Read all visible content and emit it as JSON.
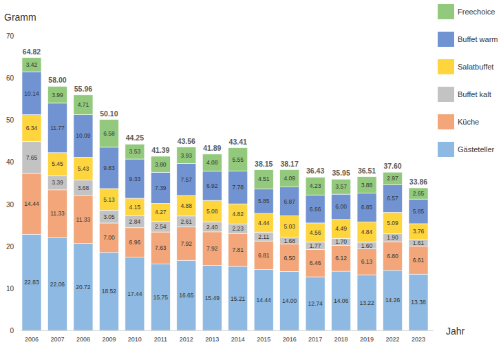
{
  "chart_data": {
    "type": "bar",
    "stacked": true,
    "data_labels": true,
    "grid": false,
    "legend": "right",
    "y_label": "Gramm",
    "x_label": "Jahr",
    "categories": [
      "2006",
      "2007",
      "2008",
      "2009",
      "2010",
      "2011",
      "2012",
      "2013",
      "2014",
      "2015",
      "2016",
      "2017",
      "2018",
      "2019",
      "2022",
      "2023"
    ],
    "ylim": [
      0,
      70
    ],
    "yticks": [
      0,
      10,
      20,
      30,
      40,
      50,
      60,
      70
    ],
    "totals": [
      64.82,
      58.0,
      55.96,
      50.1,
      44.25,
      41.39,
      43.56,
      41.89,
      43.41,
      38.15,
      38.17,
      36.43,
      35.95,
      36.51,
      37.6,
      33.86
    ],
    "total_labels": [
      "64.82",
      "58.00",
      "55.96",
      "50.10",
      "44.25",
      "41.39",
      "43.56",
      "41.89",
      "43.41",
      "38.15",
      "38.17",
      "36.43",
      "35.95",
      "36.51",
      "37.60",
      "33.86"
    ],
    "series": [
      {
        "name": "Gästeteller",
        "color": "#8db9e2",
        "values": [
          22.83,
          22.06,
          20.72,
          18.52,
          17.44,
          15.75,
          16.65,
          15.49,
          15.21,
          14.44,
          14.0,
          12.74,
          14.06,
          13.22,
          14.26,
          13.38
        ],
        "value_labels": [
          "22.83",
          "22.06",
          "20.72",
          "18.52",
          "17.44",
          "15.75",
          "16.65",
          "15.49",
          "15.21",
          "14.44",
          "14.00",
          "12.74",
          "14.06",
          "13.22",
          "14.26",
          "13.38"
        ]
      },
      {
        "name": "Küche",
        "color": "#f2a679",
        "values": [
          14.44,
          11.33,
          11.33,
          7.0,
          6.96,
          7.63,
          7.92,
          7.92,
          7.81,
          6.81,
          6.5,
          6.46,
          6.12,
          6.13,
          6.8,
          6.61
        ],
        "value_labels": [
          "14.44",
          "11.33",
          "11.33",
          "7.00",
          "6.96",
          "7.63",
          "7.92",
          "7.92",
          "7.81",
          "6.81",
          "6.50",
          "6.46",
          "6.12",
          "6.13",
          "6.80",
          "6.61"
        ]
      },
      {
        "name": "Buffet kalt",
        "color": "#c3c3c3",
        "values": [
          7.65,
          3.39,
          3.68,
          3.05,
          2.84,
          2.54,
          2.61,
          2.4,
          2.23,
          2.11,
          1.68,
          1.77,
          1.7,
          1.6,
          1.9,
          1.61
        ],
        "value_labels": [
          "7.65",
          "3.39",
          "3.68",
          "3.05",
          "2.84",
          "2.54",
          "2.61",
          "2.40",
          "2.23",
          "2.11",
          "1.68",
          "1.77",
          "1.70",
          "1.60",
          "1.90",
          "1.61"
        ]
      },
      {
        "name": "Salatbuffet",
        "color": "#ffd53e",
        "values": [
          6.34,
          5.45,
          5.43,
          5.13,
          4.15,
          4.27,
          4.88,
          5.08,
          4.82,
          4.44,
          5.03,
          4.56,
          4.49,
          4.84,
          5.09,
          3.76
        ],
        "value_labels": [
          "6.34",
          "5.45",
          "5.43",
          "5.13",
          "4.15",
          "4.27",
          "4.88",
          "5.08",
          "4.82",
          "4.44",
          "5.03",
          "4.56",
          "4.49",
          "4.84",
          "5.09",
          "3.76"
        ]
      },
      {
        "name": "Buffet warm",
        "color": "#7293d2",
        "values": [
          10.14,
          11.77,
          10.09,
          9.83,
          9.33,
          7.39,
          7.57,
          6.92,
          7.78,
          5.85,
          6.87,
          6.66,
          6.0,
          6.85,
          6.57,
          5.85
        ],
        "value_labels": [
          "10.14",
          "11.77",
          "10.09",
          "9.83",
          "9.33",
          "7.39",
          "7.57",
          "6.92",
          "7.78",
          "5.85",
          "6.87",
          "6.66",
          "6.00",
          "6.85",
          "6.57",
          "5.85"
        ]
      },
      {
        "name": "Freechoice",
        "color": "#93c97c",
        "values": [
          3.42,
          3.99,
          4.71,
          6.58,
          3.53,
          3.8,
          3.93,
          4.08,
          5.55,
          4.51,
          4.09,
          4.23,
          3.57,
          3.88,
          2.97,
          2.65
        ],
        "value_labels": [
          "3.42",
          "3.99",
          "4.71",
          "6.58",
          "3.53",
          "3.80",
          "3.93",
          "4.08",
          "5.55",
          "4.51",
          "4.09",
          "4.23",
          "3.57",
          "3.88",
          "2.97",
          "2.65"
        ]
      }
    ]
  }
}
